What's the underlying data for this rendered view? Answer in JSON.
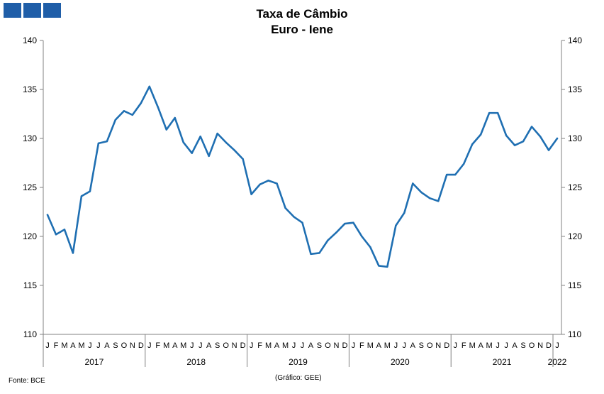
{
  "logo": {
    "color": "#1f5ea8",
    "blocks": 3
  },
  "chart_data": {
    "type": "line",
    "title": "Taxa de Câmbio",
    "subtitle": "Euro - Iene",
    "ylim": [
      110,
      140
    ],
    "yticks": [
      110,
      115,
      120,
      125,
      130,
      135,
      140
    ],
    "grid": false,
    "line_color": "#1f6fb2",
    "month_labels": [
      "J",
      "F",
      "M",
      "A",
      "M",
      "J",
      "J",
      "A",
      "S",
      "O",
      "N",
      "D"
    ],
    "years": [
      "2017",
      "2018",
      "2019",
      "2020",
      "2021",
      "2022"
    ],
    "x": [
      "2017-01",
      "2017-02",
      "2017-03",
      "2017-04",
      "2017-05",
      "2017-06",
      "2017-07",
      "2017-08",
      "2017-09",
      "2017-10",
      "2017-11",
      "2017-12",
      "2018-01",
      "2018-02",
      "2018-03",
      "2018-04",
      "2018-05",
      "2018-06",
      "2018-07",
      "2018-08",
      "2018-09",
      "2018-10",
      "2018-11",
      "2018-12",
      "2019-01",
      "2019-02",
      "2019-03",
      "2019-04",
      "2019-05",
      "2019-06",
      "2019-07",
      "2019-08",
      "2019-09",
      "2019-10",
      "2019-11",
      "2019-12",
      "2020-01",
      "2020-02",
      "2020-03",
      "2020-04",
      "2020-05",
      "2020-06",
      "2020-07",
      "2020-08",
      "2020-09",
      "2020-10",
      "2020-11",
      "2020-12",
      "2021-01",
      "2021-02",
      "2021-03",
      "2021-04",
      "2021-05",
      "2021-06",
      "2021-07",
      "2021-08",
      "2021-09",
      "2021-10",
      "2021-11",
      "2021-12",
      "2022-01"
    ],
    "values": [
      122.2,
      120.2,
      120.7,
      118.3,
      124.1,
      124.6,
      129.5,
      129.7,
      131.9,
      132.8,
      132.4,
      133.6,
      135.3,
      133.2,
      130.9,
      132.1,
      129.6,
      128.5,
      130.2,
      128.2,
      130.5,
      129.6,
      128.8,
      127.9,
      124.3,
      125.3,
      125.7,
      125.4,
      122.9,
      122.0,
      121.4,
      118.2,
      118.3,
      119.6,
      120.4,
      121.3,
      121.4,
      120.0,
      118.9,
      117.0,
      116.9,
      121.1,
      122.4,
      125.4,
      124.5,
      123.9,
      123.6,
      126.3,
      126.3,
      127.4,
      129.4,
      130.4,
      132.6,
      132.6,
      130.3,
      129.3,
      129.7,
      131.2,
      130.2,
      128.8,
      130.0
    ]
  },
  "footer": {
    "source": "Fonte: BCE",
    "credit": "(Gráfico: GEE)"
  }
}
